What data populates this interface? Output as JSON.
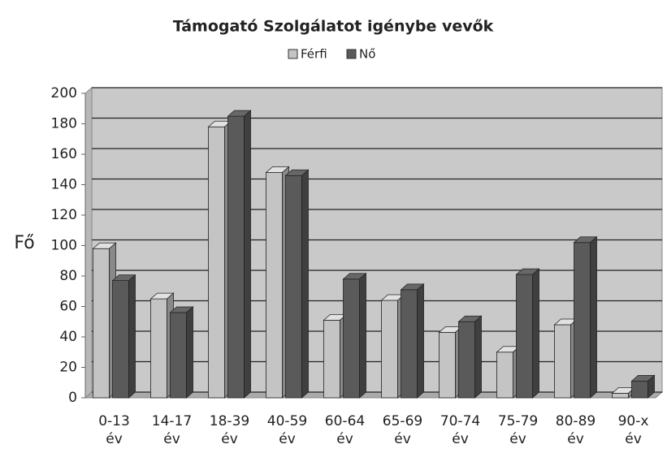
{
  "chart_data": {
    "type": "bar3d",
    "title": "Támogató Szolgálatot igénybe vevők",
    "y_label": "Fő",
    "categories": [
      "0-13 év",
      "14-17 év",
      "18-39 év",
      "40-59 év",
      "60-64 év",
      "65-69 év",
      "70-74 év",
      "75-79 év",
      "80-89 év",
      "90-x év"
    ],
    "series": [
      {
        "name": "Férfi",
        "color": "#c4c4c4",
        "values": [
          98,
          65,
          178,
          148,
          51,
          64,
          43,
          30,
          48,
          3
        ]
      },
      {
        "name": "Nő",
        "color": "#5a5a5a",
        "values": [
          77,
          56,
          185,
          146,
          78,
          71,
          50,
          81,
          102,
          11
        ]
      }
    ],
    "ylim": [
      0,
      200
    ],
    "yticks": [
      0,
      20,
      40,
      60,
      80,
      100,
      120,
      140,
      160,
      180,
      200
    ],
    "grid": true,
    "legend": "top"
  }
}
